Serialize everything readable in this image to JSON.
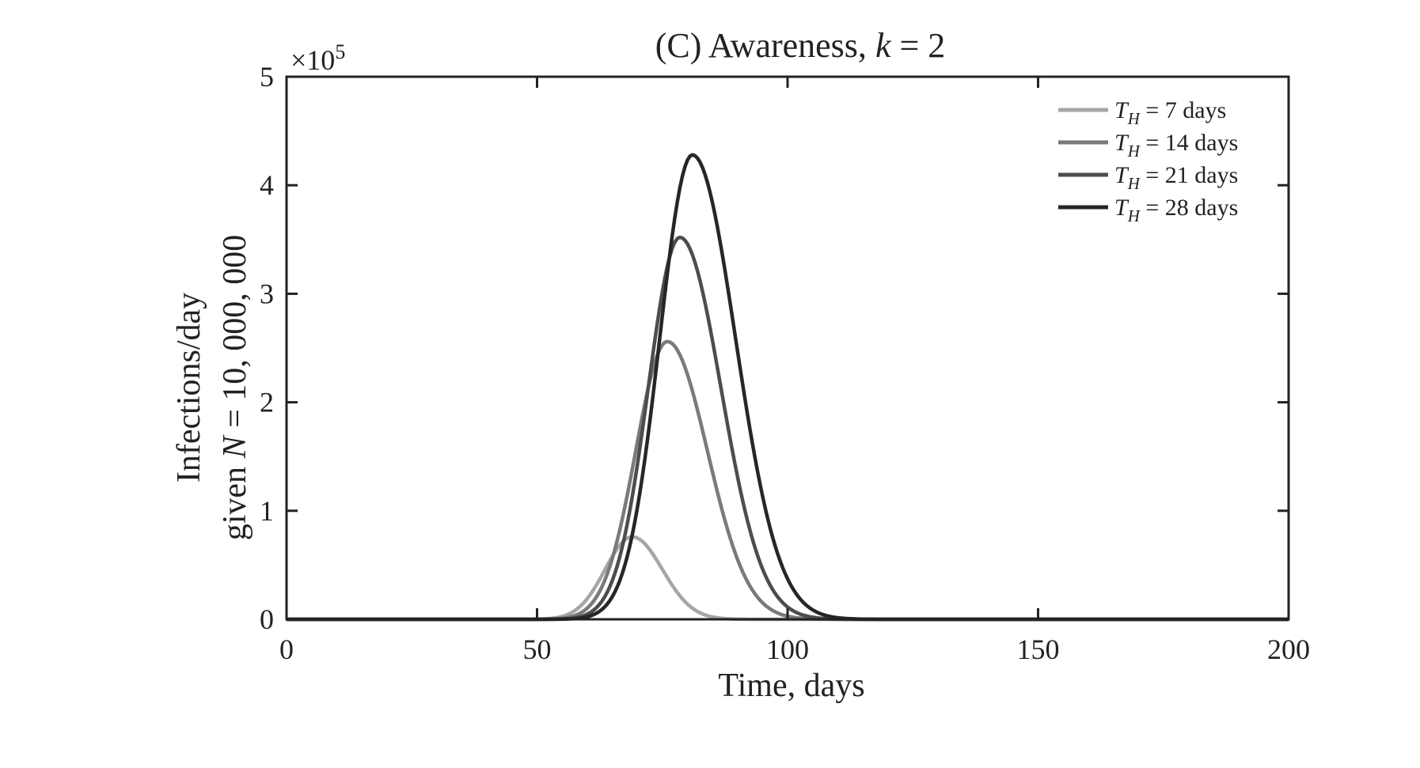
{
  "chart_data": {
    "type": "line",
    "title": "(C) Awareness, k = 2",
    "title_parts": {
      "prefix": "(C) Awareness, ",
      "var": "k",
      "suffix": " = 2"
    },
    "xlabel": "Time, days",
    "ylabel_line1": "Infections/day",
    "ylabel_line2": {
      "prefix": "given ",
      "var": "N",
      "suffix": " = 10, 000, 000"
    },
    "y_multiplier": {
      "base": "×10",
      "exponent": "5"
    },
    "xlim": [
      0,
      200
    ],
    "ylim": [
      0,
      5
    ],
    "x_ticks": [
      0,
      50,
      100,
      150,
      200
    ],
    "y_ticks": [
      0,
      1,
      2,
      3,
      4,
      5
    ],
    "grid": false,
    "legend_placement": "top-right",
    "series": [
      {
        "name": "T_H = 7 days",
        "legend": {
          "var": "T",
          "sub": "H",
          "text": " = 7 days"
        },
        "color": "#a6a6a6",
        "peak_x": 69,
        "peak_y": 0.76,
        "rise_width": 5.4,
        "fall_width": 6.0
      },
      {
        "name": "T_H = 14 days",
        "legend": {
          "var": "T",
          "sub": "H",
          "text": " = 14 days"
        },
        "color": "#7a7a7a",
        "peak_x": 76,
        "peak_y": 2.56,
        "rise_width": 6.3,
        "fall_width": 8.0
      },
      {
        "name": "T_H = 21 days",
        "legend": {
          "var": "T",
          "sub": "H",
          "text": " = 21 days"
        },
        "color": "#4d4d4d",
        "peak_x": 78.5,
        "peak_y": 3.52,
        "rise_width": 6.3,
        "fall_width": 8.2
      },
      {
        "name": "T_H = 28 days",
        "legend": {
          "var": "T",
          "sub": "H",
          "text": " = 28 days"
        },
        "color": "#262626",
        "peak_x": 81,
        "peak_y": 4.28,
        "rise_width": 6.5,
        "fall_width": 8.6
      }
    ]
  }
}
